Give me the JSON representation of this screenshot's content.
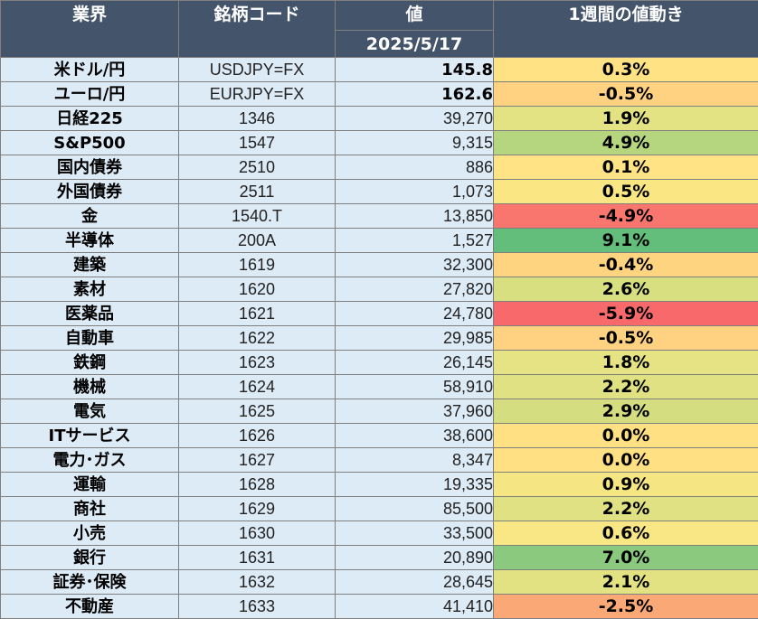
{
  "header": {
    "sector": "業界",
    "code": "銘柄コード",
    "value": "値",
    "date": "2025/5/17",
    "change": "1週間の値動き"
  },
  "rows": [
    {
      "name": "米ドル/円",
      "code": "USDJPY=FX",
      "value": "145.8",
      "change": "0.3%",
      "color": "#ffe284"
    },
    {
      "name": "ユーロ/円",
      "code": "EURJPY=FX",
      "value": "162.6",
      "change": "-0.5%",
      "color": "#fed280"
    },
    {
      "name": "日経225",
      "code": "1346",
      "value": "39,270",
      "change": "1.9%",
      "color": "#e4e383"
    },
    {
      "name": "S&P500",
      "code": "1547",
      "value": "9,315",
      "change": "4.9%",
      "color": "#b5d57f"
    },
    {
      "name": "国内債券",
      "code": "2510",
      "value": "886",
      "change": "0.1%",
      "color": "#ffe384"
    },
    {
      "name": "外国債券",
      "code": "2511",
      "value": "1,073",
      "change": "0.5%",
      "color": "#fbe684"
    },
    {
      "name": "金",
      "code": "1540.T",
      "value": "13,850",
      "change": "-4.9%",
      "color": "#f8766e"
    },
    {
      "name": "半導体",
      "code": "200A",
      "value": "1,527",
      "change": "9.1%",
      "color": "#63be7b"
    },
    {
      "name": "建築",
      "code": "1619",
      "value": "32,300",
      "change": "-0.4%",
      "color": "#fed481"
    },
    {
      "name": "素材",
      "code": "1620",
      "value": "27,820",
      "change": "2.6%",
      "color": "#d8df81"
    },
    {
      "name": "医薬品",
      "code": "1621",
      "value": "24,780",
      "change": "-5.9%",
      "color": "#f8696b"
    },
    {
      "name": "自動車",
      "code": "1622",
      "value": "29,985",
      "change": "-0.5%",
      "color": "#fed280"
    },
    {
      "name": "鉄鋼",
      "code": "1623",
      "value": "26,145",
      "change": "1.8%",
      "color": "#e5e383"
    },
    {
      "name": "機械",
      "code": "1624",
      "value": "58,910",
      "change": "2.2%",
      "color": "#e0e182"
    },
    {
      "name": "電気",
      "code": "1625",
      "value": "37,960",
      "change": "2.9%",
      "color": "#d4de81"
    },
    {
      "name": "ITサービス",
      "code": "1626",
      "value": "38,600",
      "change": "0.0%",
      "color": "#ffe083"
    },
    {
      "name": "電力･ガス",
      "code": "1627",
      "value": "8,347",
      "change": "0.0%",
      "color": "#ffe083"
    },
    {
      "name": "運輸",
      "code": "1628",
      "value": "19,335",
      "change": "0.9%",
      "color": "#f5e583"
    },
    {
      "name": "商社",
      "code": "1629",
      "value": "85,500",
      "change": "2.2%",
      "color": "#e0e182"
    },
    {
      "name": "小売",
      "code": "1630",
      "value": "33,500",
      "change": "0.6%",
      "color": "#f9e684"
    },
    {
      "name": "銀行",
      "code": "1631",
      "value": "20,890",
      "change": "7.0%",
      "color": "#8bc97e"
    },
    {
      "name": "証券･保険",
      "code": "1632",
      "value": "28,645",
      "change": "2.1%",
      "color": "#e2e282"
    },
    {
      "name": "不動産",
      "code": "1633",
      "value": "41,410",
      "change": "-2.5%",
      "color": "#fba877"
    }
  ],
  "colors": {
    "header_bg": "#44546a",
    "cell_bg": "#ddebf7",
    "border": "#7f7f7f"
  }
}
